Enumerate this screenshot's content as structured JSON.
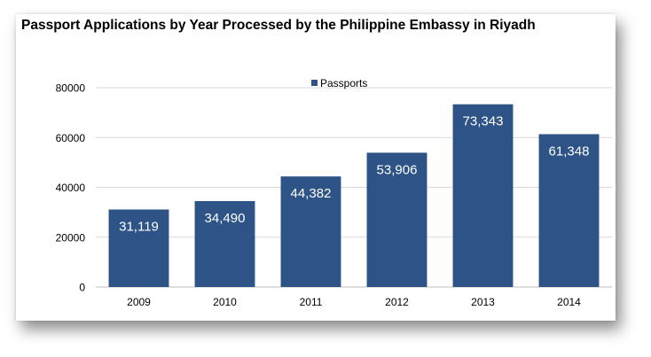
{
  "chart_data": {
    "type": "bar",
    "title": "Passport Applications by Year Processed by the Philippine Embassy in Riyadh",
    "xlabel": "",
    "ylabel": "",
    "categories": [
      "2009",
      "2010",
      "2011",
      "2012",
      "2013",
      "2014"
    ],
    "series": [
      {
        "name": "Passports",
        "values": [
          31119,
          34490,
          44382,
          53906,
          73343,
          61348
        ],
        "labels": [
          "31,119",
          "34,490",
          "44,382",
          "53,906",
          "73,343",
          "61,348"
        ]
      }
    ],
    "ylim": [
      0,
      80000
    ],
    "yticks": [
      0,
      20000,
      40000,
      60000,
      80000
    ],
    "ytick_labels": [
      "0",
      "20000",
      "40000",
      "60000",
      "80000"
    ],
    "grid": "horizontal",
    "legend": "top-center",
    "colors": {
      "bar": "#2e5487",
      "grid": "#d9d9d9",
      "text": "#000000",
      "label": "#ffffff"
    }
  }
}
